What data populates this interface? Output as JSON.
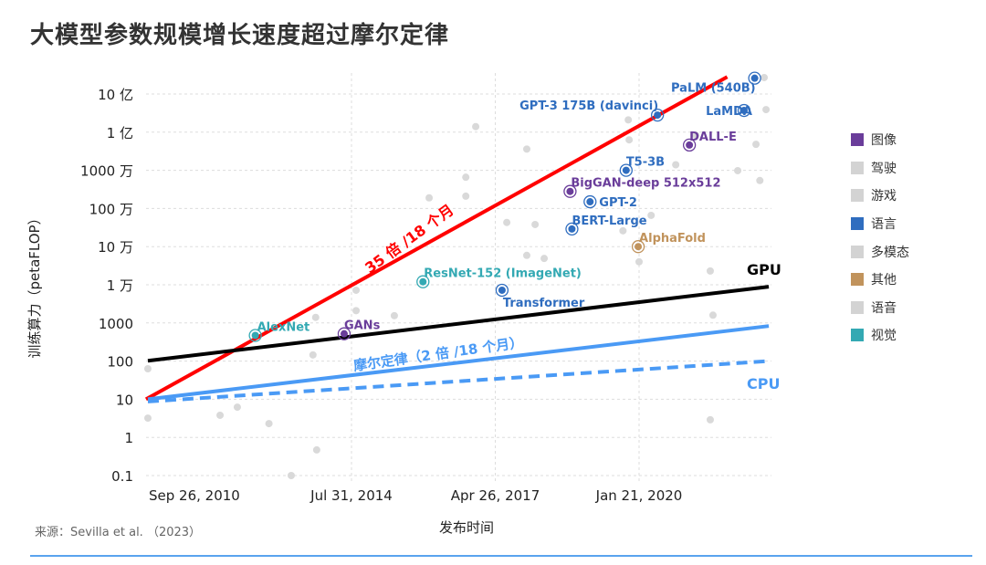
{
  "title": "大模型参数规模增长速度超过摩尔定律",
  "source": "来源：Sevilla et al. （2023）",
  "chart_data": {
    "type": "scatter",
    "title": "大模型参数规模增长速度超过摩尔定律",
    "xlabel": "发布时间",
    "ylabel": "训练算力（petaFLOP）",
    "y_scale": "log",
    "ylim": [
      0.1,
      10000000000
    ],
    "y_ticks": [
      {
        "value": 0.1,
        "label": "0.1"
      },
      {
        "value": 1,
        "label": "1"
      },
      {
        "value": 10,
        "label": "10"
      },
      {
        "value": 100,
        "label": "100"
      },
      {
        "value": 1000,
        "label": "1000"
      },
      {
        "value": 10000,
        "label": "1 万"
      },
      {
        "value": 100000,
        "label": "10 万"
      },
      {
        "value": 1000000,
        "label": "100 万"
      },
      {
        "value": 10000000,
        "label": "1000 万"
      },
      {
        "value": 100000000,
        "label": "1 亿"
      },
      {
        "value": 1000000000,
        "label": "10 亿"
      }
    ],
    "x_ticks": [
      {
        "date": "2010-09-26",
        "label": "Sep 26, 2010"
      },
      {
        "date": "2014-07-31",
        "label": "Jul 31, 2014"
      },
      {
        "date": "2017-04-26",
        "label": "Apr 26, 2017"
      },
      {
        "date": "2020-01-21",
        "label": "Jan 21, 2020"
      }
    ],
    "grid": true,
    "legend_position": "right",
    "categories": [
      {
        "name": "图像",
        "color": "#6a3d9a"
      },
      {
        "name": "驾驶",
        "color": "#d3d3d3"
      },
      {
        "name": "游戏",
        "color": "#d3d3d3"
      },
      {
        "name": "语言",
        "color": "#2f6dbf"
      },
      {
        "name": "多模态",
        "color": "#d3d3d3"
      },
      {
        "name": "其他",
        "color": "#c1935c"
      },
      {
        "name": "语音",
        "color": "#d3d3d3"
      },
      {
        "name": "视觉",
        "color": "#33a9b3"
      }
    ],
    "labeled_points": [
      {
        "name": "AlexNet",
        "date": "2012-09-30",
        "value": 470,
        "category": "视觉"
      },
      {
        "name": "GANs",
        "date": "2014-06-10",
        "value": 520,
        "category": "图像"
      },
      {
        "name": "ResNet-152 (ImageNet)",
        "date": "2015-12-10",
        "value": 12000,
        "category": "视觉"
      },
      {
        "name": "Transformer",
        "date": "2017-06-12",
        "value": 7200,
        "category": "语言"
      },
      {
        "name": "BERT-Large",
        "date": "2018-10-11",
        "value": 290000,
        "category": "语言"
      },
      {
        "name": "GPT-2",
        "date": "2019-02-14",
        "value": 1500000,
        "category": "语言"
      },
      {
        "name": "BigGAN-deep 512x512",
        "date": "2018-09-28",
        "value": 2800000,
        "category": "图像"
      },
      {
        "name": "T5-3B",
        "date": "2019-10-23",
        "value": 10000000,
        "category": "语言"
      },
      {
        "name": "AlphaFold",
        "date": "2020-01-15",
        "value": 100000,
        "category": "其他"
      },
      {
        "name": "GPT-3 175B (davinci)",
        "date": "2020-05-28",
        "value": 280000000,
        "category": "语言"
      },
      {
        "name": "DALL-E",
        "date": "2021-01-05",
        "value": 46000000,
        "category": "图像"
      },
      {
        "name": "LaMDA",
        "date": "2022-01-20",
        "value": 370000000,
        "category": "语言"
      },
      {
        "name": "PaLM (540B)",
        "date": "2022-04-04",
        "value": 2600000000,
        "category": "语言"
      }
    ],
    "other_points": [
      [
        "2010-09-14",
        63
      ],
      [
        "2010-09-14",
        3.2
      ],
      [
        "2012-01-29",
        3.8
      ],
      [
        "2012-05-28",
        6.2
      ],
      [
        "2013-01-03",
        2.3
      ],
      [
        "2013-06-07",
        0.1
      ],
      [
        "2013-12-01",
        0.47
      ],
      [
        "2013-11-05",
        145
      ],
      [
        "2013-11-24",
        1400
      ],
      [
        "2014-09-01",
        2100
      ],
      [
        "2014-09-01",
        7200
      ],
      [
        "2015-05-25",
        1550
      ],
      [
        "2016-01-22",
        1900000
      ],
      [
        "2016-10-03",
        2100000
      ],
      [
        "2016-10-03",
        6600000
      ],
      [
        "2016-12-11",
        140000000
      ],
      [
        "2017-07-15",
        430000
      ],
      [
        "2017-12-01",
        36000000
      ],
      [
        "2018-01-28",
        380000
      ],
      [
        "2017-12-01",
        59000
      ],
      [
        "2018-04-01",
        49000
      ],
      [
        "2019-11-07",
        210000000
      ],
      [
        "2019-11-13",
        63000000
      ],
      [
        "2020-01-21",
        40000
      ],
      [
        "2020-10-02",
        14000000
      ],
      [
        "2021-02-18",
        83000000
      ],
      [
        "2021-05-30",
        23000
      ],
      [
        "2021-05-30",
        2.9
      ],
      [
        "2021-06-18",
        1600
      ],
      [
        "2021-12-07",
        9800000
      ],
      [
        "2022-06-09",
        2700000000
      ],
      [
        "2022-06-22",
        390000000
      ],
      [
        "2022-04-13",
        48000000
      ],
      [
        "2022-05-10",
        5400000
      ],
      [
        "2019-10-01",
        260000
      ],
      [
        "2020-04-14",
        660000
      ]
    ],
    "trend_lines": [
      {
        "name": "35 倍 /18 个月",
        "color": "#ff0000",
        "style": "solid",
        "start": [
          "2010-09-01",
          10
        ],
        "end": [
          "2021-09-25",
          2800000000
        ]
      },
      {
        "name": "GPU",
        "color": "#000000",
        "style": "solid",
        "start": [
          "2010-09-14",
          102
        ],
        "end": [
          "2022-07-11",
          8900
        ]
      },
      {
        "name": "摩尔定律（2 倍 /18 个月）",
        "color": "#4a9af5",
        "style": "solid",
        "start": [
          "2010-09-14",
          10
        ],
        "end": [
          "2022-07-11",
          830
        ]
      },
      {
        "name": "CPU",
        "color": "#4a9af5",
        "style": "dashed",
        "start": [
          "2010-09-14",
          8.7
        ],
        "end": [
          "2022-07-11",
          100
        ]
      }
    ]
  }
}
